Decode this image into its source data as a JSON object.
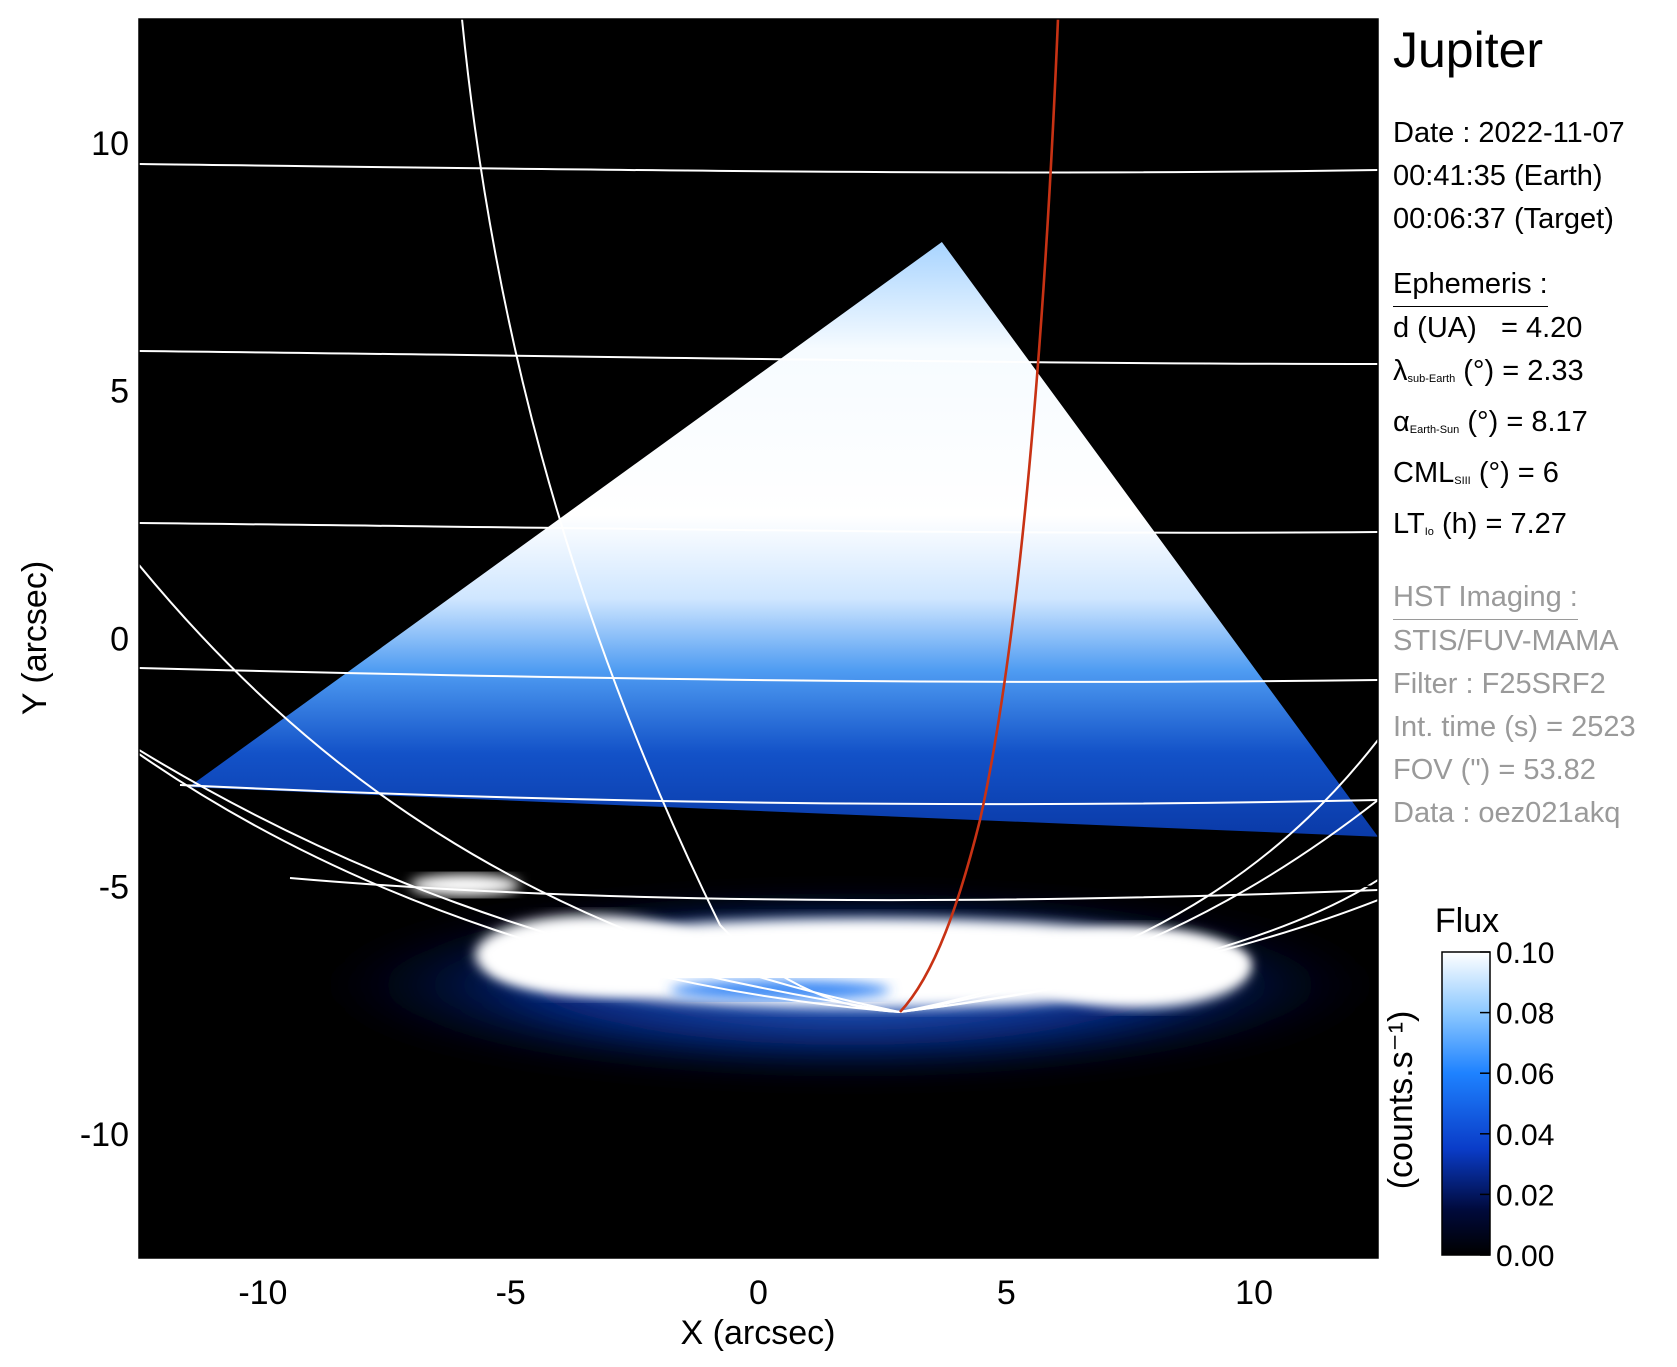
{
  "chart_data": {
    "type": "heatmap",
    "xlabel": "X (arcsec)",
    "ylabel": "Y (arcsec)",
    "xlim": [
      -12.5,
      12.5
    ],
    "ylim": [
      -12.5,
      12.5
    ],
    "xticks": [
      -10,
      -5,
      0,
      5,
      10
    ],
    "yticks": [
      10,
      5,
      0,
      -5,
      -10
    ],
    "xtick_labels": [
      "-10",
      "-5",
      "0",
      "5",
      "10"
    ],
    "ytick_labels": [
      "10",
      "5",
      "0",
      "-5",
      "-10"
    ],
    "colorbar": {
      "title": "Flux",
      "label": "(counts.s⁻¹)",
      "ticks": [
        "0.10",
        "0.08",
        "0.06",
        "0.04",
        "0.02",
        "0.00"
      ],
      "range": [
        0.0,
        0.1
      ],
      "colors": [
        "#000000",
        "#000a3c",
        "#0a3cc8",
        "#1e82ff",
        "#8cc8ff",
        "#ffffff"
      ]
    },
    "grid_color": "#ffffff",
    "meridian_highlight_color": "#c83214",
    "fov_triangle_apex": [
      3.7,
      8.0
    ],
    "fov_triangle_left": [
      -11.5,
      -3.0
    ],
    "fov_triangle_right": [
      12.5,
      -4.0
    ]
  },
  "info": {
    "target": "Jupiter",
    "date_line": "Date : 2022-11-07",
    "time_earth": "00:41:35 (Earth)",
    "time_target": "00:06:37 (Target)",
    "ephem_heading": "Ephemeris :",
    "d_label": "d (UA)",
    "d_value": "= 4.20",
    "lat_symbol": "λ",
    "lat_sub": "sub-Earth",
    "lat_value": "(°) = 2.33",
    "phase_symbol": "α",
    "phase_sub": "Earth-Sun",
    "phase_value": "(°) = 8.17",
    "cml_symbol": "CML",
    "cml_sub": "SIII",
    "cml_value": "(°) = 6",
    "lt_symbol": "LT",
    "lt_sub": "Io",
    "lt_value": "(h) = 7.27",
    "hst_heading": "HST Imaging :",
    "instrument": "STIS/FUV-MAMA",
    "filter": "Filter : F25SRF2",
    "int_time": "Int. time (s) = 2523",
    "fov": "FOV (\") = 53.82",
    "dataset": "Data : oez021akq"
  }
}
